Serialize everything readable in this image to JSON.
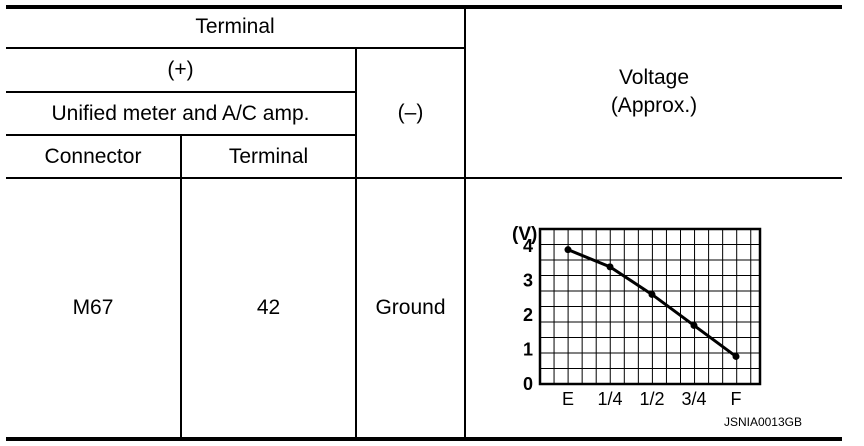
{
  "table": {
    "header": {
      "terminal": "Terminal",
      "plus": "(+)",
      "unit": "Unified meter and A/C amp.",
      "connector": "Connector",
      "terminal_col": "Terminal",
      "minus": "(–)",
      "voltage_line1": "Voltage",
      "voltage_line2": "(Approx.)"
    },
    "row": {
      "connector": "M67",
      "terminal": "42",
      "minus": "Ground"
    }
  },
  "chart_data": {
    "type": "line",
    "categories": [
      "E",
      "1/4",
      "1/2",
      "3/4",
      "F"
    ],
    "values": [
      3.9,
      3.4,
      2.6,
      1.7,
      0.8
    ],
    "ylabel": "(V)",
    "yticks": [
      "0",
      "1",
      "2",
      "3",
      "4"
    ],
    "ylim": [
      0,
      4.5
    ],
    "grid": true,
    "line_color": "#000000"
  },
  "figure_code": "JSNIA0013GB"
}
